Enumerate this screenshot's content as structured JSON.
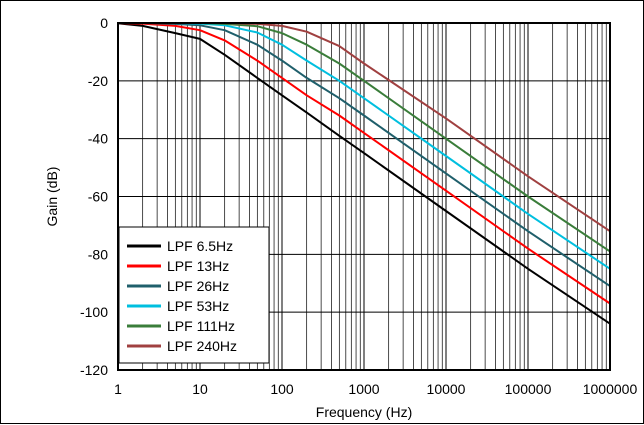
{
  "chart_data": {
    "type": "line",
    "title": "",
    "xlabel": "Frequency (Hz)",
    "ylabel": "Gain (dB)",
    "xscale": "log",
    "xlim": [
      1,
      1000000
    ],
    "ylim": [
      -120,
      0
    ],
    "xticks": [
      "1",
      "10",
      "100",
      "1000",
      "10000",
      "100000",
      "1000000"
    ],
    "yticks": [
      "0",
      "-20",
      "-40",
      "-60",
      "-80",
      "-100",
      "-120"
    ],
    "grid": true,
    "legend_position": "bottom-left",
    "series": [
      {
        "name": "LPF 6.5Hz",
        "color": "#000000",
        "x": [
          1,
          2,
          5,
          10,
          20,
          50,
          100,
          200,
          500,
          1000,
          10000,
          100000,
          1000000
        ],
        "y": [
          -0.1,
          -1.0,
          -3.5,
          -5.5,
          -11,
          -19,
          -25,
          -31,
          -39,
          -45,
          -65,
          -85,
          -104
        ]
      },
      {
        "name": "LPF 13Hz",
        "color": "#ff0000",
        "x": [
          1,
          2,
          5,
          10,
          20,
          50,
          100,
          200,
          500,
          1000,
          10000,
          100000,
          1000000
        ],
        "y": [
          0,
          -0.2,
          -1.0,
          -2.5,
          -6,
          -13,
          -19,
          -25,
          -32,
          -38,
          -58,
          -78,
          -97
        ]
      },
      {
        "name": "LPF 26Hz",
        "color": "#1f5f6b",
        "x": [
          1,
          2,
          5,
          10,
          20,
          50,
          100,
          200,
          500,
          1000,
          10000,
          100000,
          1000000
        ],
        "y": [
          0,
          0,
          -0.3,
          -0.8,
          -2.5,
          -7.5,
          -13,
          -19,
          -26,
          -32,
          -52,
          -72,
          -91
        ]
      },
      {
        "name": "LPF 53Hz",
        "color": "#00bfdf",
        "x": [
          1,
          2,
          5,
          10,
          20,
          50,
          100,
          200,
          500,
          1000,
          10000,
          100000,
          1000000
        ],
        "y": [
          0,
          0,
          0,
          -0.2,
          -0.8,
          -3.3,
          -7.5,
          -13,
          -20,
          -26,
          -46,
          -66,
          -85
        ]
      },
      {
        "name": "LPF 111Hz",
        "color": "#3a7d3a",
        "x": [
          1,
          2,
          5,
          10,
          20,
          50,
          100,
          200,
          500,
          1000,
          10000,
          100000,
          1000000
        ],
        "y": [
          0,
          0,
          0,
          0,
          -0.3,
          -1.1,
          -3.5,
          -7.5,
          -14,
          -20,
          -40,
          -60,
          -79
        ]
      },
      {
        "name": "LPF 240Hz",
        "color": "#a04040",
        "x": [
          1,
          2,
          5,
          10,
          20,
          50,
          100,
          200,
          500,
          1000,
          10000,
          100000,
          1000000
        ],
        "y": [
          0,
          0,
          0,
          0,
          0,
          -0.3,
          -1.0,
          -3.0,
          -8,
          -14,
          -33,
          -53,
          -72
        ]
      }
    ]
  }
}
